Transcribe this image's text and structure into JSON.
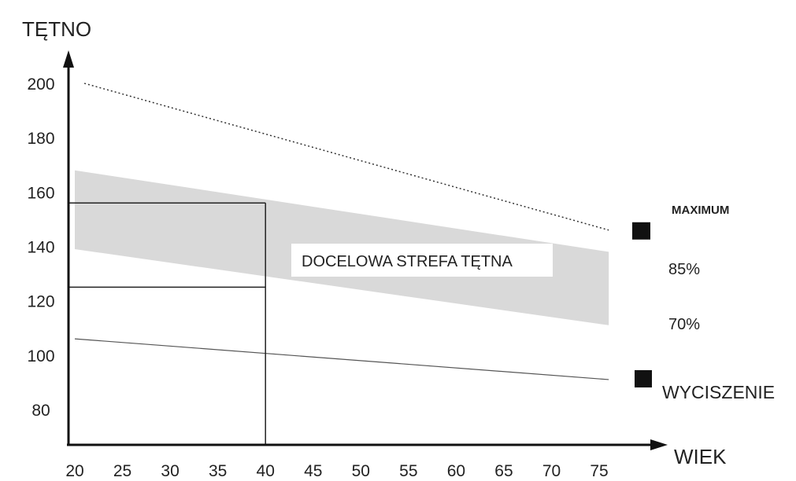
{
  "chart_data": {
    "type": "line",
    "ylabel": "TĘTNO",
    "xlabel": "WIEK",
    "x_ticks": [
      20,
      25,
      30,
      35,
      40,
      45,
      50,
      55,
      60,
      65,
      70,
      75
    ],
    "y_ticks": [
      80,
      100,
      120,
      140,
      160,
      180,
      200
    ],
    "x_range": [
      20,
      77
    ],
    "y_range": [
      62,
      208
    ],
    "grid": false,
    "series": [
      {
        "name": "MAXIMUM",
        "style": "dotted",
        "x": [
          21,
          76
        ],
        "y": [
          200,
          146
        ]
      },
      {
        "name": "WYCISZENIE",
        "style": "solid",
        "x": [
          20,
          76
        ],
        "y": [
          106,
          91
        ]
      }
    ],
    "zone": {
      "label": "DOCELOWA STREFA TĘTNA",
      "upper": {
        "name": "85%",
        "x": [
          20,
          76
        ],
        "y": [
          168,
          138
        ]
      },
      "lower": {
        "name": "70%",
        "x": [
          20,
          76
        ],
        "y": [
          139,
          111
        ]
      },
      "color": "#d9d9d9"
    },
    "reference": {
      "age": 40,
      "upper": 156,
      "lower": 125
    },
    "legend_markers": [
      "MAXIMUM",
      "WYCISZENIE"
    ],
    "band_labels": [
      "85%",
      "70%"
    ]
  }
}
